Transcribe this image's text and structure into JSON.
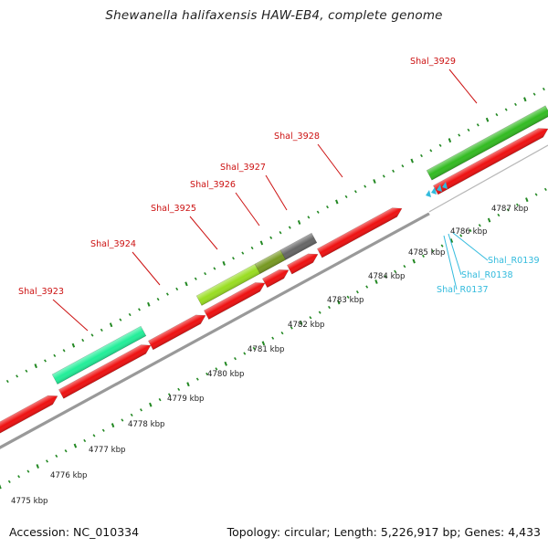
{
  "title": "Shewanella halifaxensis HAW-EB4, complete genome",
  "footer": {
    "accession": "Accession: NC_010334",
    "summary": "Topology: circular; Length: 5,226,917 bp; Genes: 4,433"
  },
  "colors": {
    "cds": "#ee1111",
    "backbone": "#999999",
    "gene_label": "#cc1111",
    "rna_label": "#33bbdd",
    "ruler_tick": "#228822",
    "ruler_label": "#222222",
    "feature_teal": "#22ee99",
    "feature_lime": "#99dd22",
    "feature_olive": "#779922",
    "feature_gray": "#666666",
    "feature_green": "#33bb22"
  },
  "ruler": {
    "unit": "kbp",
    "labels": [
      "4775 kbp",
      "4776 kbp",
      "4777 kbp",
      "4778 kbp",
      "4779 kbp",
      "4780 kbp",
      "4781 kbp",
      "4782 kbp",
      "4783 kbp",
      "4784 kbp",
      "4785 kbp",
      "4786 kbp",
      "4787 kbp"
    ]
  },
  "gene_labels": [
    "Shal_3923",
    "Shal_3924",
    "Shal_3925",
    "Shal_3926",
    "Shal_3927",
    "Shal_3928",
    "Shal_3929"
  ],
  "rna_labels": [
    "Shal_R0137",
    "Shal_R0138",
    "Shal_R0139"
  ]
}
